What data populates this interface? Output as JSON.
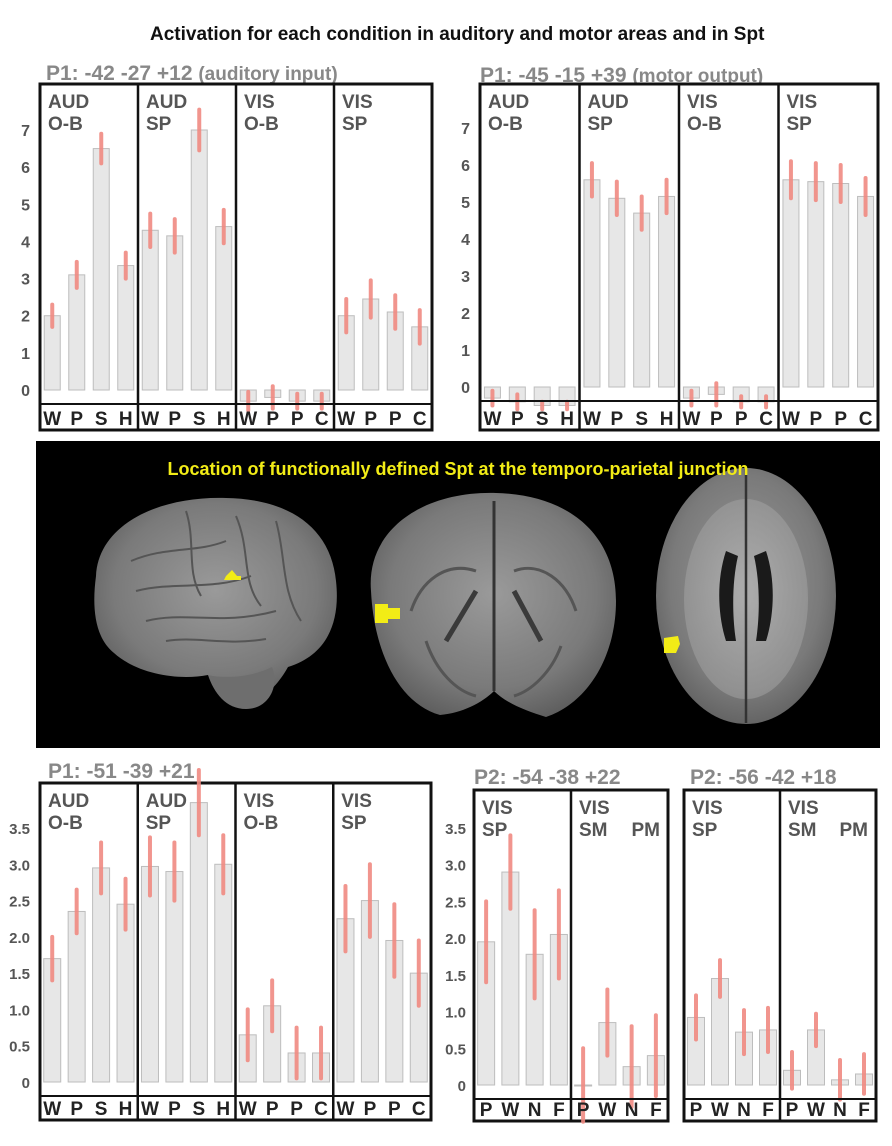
{
  "title": "Activation for each condition in auditory and motor areas and in Spt",
  "brain_caption": "Location of functionally defined Spt at the temporo-parietal junction",
  "colors": {
    "bar_fill": "#e7e7e7",
    "bar_stroke": "#bdbdbd",
    "error_bar": "#f08a82",
    "spt_highlight": "#f2ec16",
    "frame": "#111111",
    "background_dark": "#000000"
  },
  "chart_data": [
    {
      "type": "bar",
      "title": "P1: -42 -27 +12",
      "subtitle": "(auditory input)",
      "ylim": [
        0,
        7.5
      ],
      "yticks": [
        0,
        1,
        2,
        3,
        4,
        5,
        6,
        7
      ],
      "grid": false,
      "groups": [
        {
          "label_line1": "AUD",
          "label_line2": "O-B",
          "categories": [
            "W",
            "P",
            "S",
            "H"
          ],
          "values": [
            2.0,
            3.1,
            6.5,
            3.35
          ],
          "errors": [
            0.3,
            0.35,
            0.4,
            0.35
          ]
        },
        {
          "label_line1": "AUD",
          "label_line2": "SP",
          "categories": [
            "W",
            "P",
            "S",
            "H"
          ],
          "values": [
            4.3,
            4.15,
            7.0,
            4.4
          ],
          "errors": [
            0.45,
            0.45,
            0.55,
            0.45
          ]
        },
        {
          "label_line1": "VIS",
          "label_line2": "O-B",
          "categories": [
            "W",
            "P",
            "P",
            "C"
          ],
          "values": [
            -0.3,
            -0.2,
            -0.3,
            -0.3
          ],
          "errors": [
            0.25,
            0.3,
            0.2,
            0.2
          ]
        },
        {
          "label_line1": "VIS",
          "label_line2": "SP",
          "categories": [
            "W",
            "P",
            "P",
            "C"
          ],
          "values": [
            2.0,
            2.45,
            2.1,
            1.7
          ],
          "errors": [
            0.45,
            0.5,
            0.45,
            0.45
          ]
        }
      ]
    },
    {
      "type": "bar",
      "title": "P1: -45 -15 +39",
      "subtitle": "(motor output)",
      "ylim": [
        0,
        7.5
      ],
      "yticks": [
        0,
        1,
        2,
        3,
        4,
        5,
        6,
        7
      ],
      "grid": false,
      "groups": [
        {
          "label_line1": "AUD",
          "label_line2": "O-B",
          "categories": [
            "W",
            "P",
            "S",
            "H"
          ],
          "values": [
            -0.3,
            -0.4,
            -0.5,
            -0.5
          ],
          "errors": [
            0.2,
            0.2,
            0.1,
            0.1
          ]
        },
        {
          "label_line1": "AUD",
          "label_line2": "SP",
          "categories": [
            "W",
            "P",
            "S",
            "H"
          ],
          "values": [
            5.6,
            5.1,
            4.7,
            5.15
          ],
          "errors": [
            0.45,
            0.45,
            0.45,
            0.45
          ]
        },
        {
          "label_line1": "VIS",
          "label_line2": "O-B",
          "categories": [
            "W",
            "P",
            "P",
            "C"
          ],
          "values": [
            -0.3,
            -0.2,
            -0.4,
            -0.4
          ],
          "errors": [
            0.2,
            0.3,
            0.15,
            0.15
          ]
        },
        {
          "label_line1": "VIS",
          "label_line2": "SP",
          "categories": [
            "W",
            "P",
            "P",
            "C"
          ],
          "values": [
            5.6,
            5.55,
            5.5,
            5.15
          ],
          "errors": [
            0.5,
            0.5,
            0.5,
            0.5
          ]
        }
      ]
    },
    {
      "type": "bar",
      "title": "P1: -51 -39 +21",
      "ylim": [
        0,
        3.8
      ],
      "yticks": [
        "0",
        "0.5",
        "1.0",
        "1.5",
        "2.0",
        "2.5",
        "3.0",
        "3.5"
      ],
      "grid": false,
      "groups": [
        {
          "label_line1": "AUD",
          "label_line2": "O-B",
          "categories": [
            "W",
            "P",
            "S",
            "H"
          ],
          "values": [
            1.7,
            2.35,
            2.95,
            2.45
          ],
          "errors": [
            0.3,
            0.3,
            0.35,
            0.35
          ]
        },
        {
          "label_line1": "AUD",
          "label_line2": "SP",
          "categories": [
            "W",
            "P",
            "S",
            "H"
          ],
          "values": [
            2.97,
            2.9,
            3.85,
            3.0
          ],
          "errors": [
            0.4,
            0.4,
            0.45,
            0.4
          ]
        },
        {
          "label_line1": "VIS",
          "label_line2": "O-B",
          "categories": [
            "W",
            "P",
            "P",
            "C"
          ],
          "values": [
            0.65,
            1.05,
            0.4,
            0.4
          ],
          "errors": [
            0.35,
            0.35,
            0.35,
            0.35
          ]
        },
        {
          "label_line1": "VIS",
          "label_line2": "SP",
          "categories": [
            "W",
            "P",
            "P",
            "C"
          ],
          "values": [
            2.25,
            2.5,
            1.95,
            1.5
          ],
          "errors": [
            0.45,
            0.5,
            0.5,
            0.45
          ]
        }
      ]
    },
    {
      "type": "bar",
      "title": "P2: -54 -38 +22",
      "ylim": [
        0,
        3.8
      ],
      "yticks": [
        "0",
        "0.5",
        "1.0",
        "1.5",
        "2.0",
        "2.5",
        "3.0",
        "3.5"
      ],
      "grid": false,
      "groups": [
        {
          "label_line1": "VIS",
          "label_line2": "SP",
          "categories": [
            "P",
            "W",
            "N",
            "F"
          ],
          "values": [
            1.95,
            2.9,
            1.78,
            2.05
          ],
          "errors": [
            0.55,
            0.5,
            0.6,
            0.6
          ]
        },
        {
          "label_line1": "VIS",
          "label_line2": "SM",
          "label_right": "PM",
          "categories": [
            "P",
            "W",
            "N",
            "F"
          ],
          "values": [
            0.0,
            0.85,
            0.25,
            0.4
          ],
          "errors": [
            0.5,
            0.45,
            0.55,
            0.55
          ]
        }
      ]
    },
    {
      "type": "bar",
      "title": "P2: -56 -42 +18",
      "ylim": [
        0,
        3.8
      ],
      "yticks": [],
      "grid": false,
      "groups": [
        {
          "label_line1": "VIS",
          "label_line2": "SP",
          "categories": [
            "P",
            "W",
            "N",
            "F"
          ],
          "values": [
            0.92,
            1.45,
            0.72,
            0.75
          ],
          "errors": [
            0.3,
            0.25,
            0.3,
            0.3
          ]
        },
        {
          "label_line1": "VIS",
          "label_line2": "SM",
          "label_right": "PM",
          "categories": [
            "P",
            "W",
            "N",
            "F"
          ],
          "values": [
            0.2,
            0.75,
            0.07,
            0.15
          ],
          "errors": [
            0.25,
            0.22,
            0.27,
            0.27
          ]
        }
      ]
    }
  ]
}
